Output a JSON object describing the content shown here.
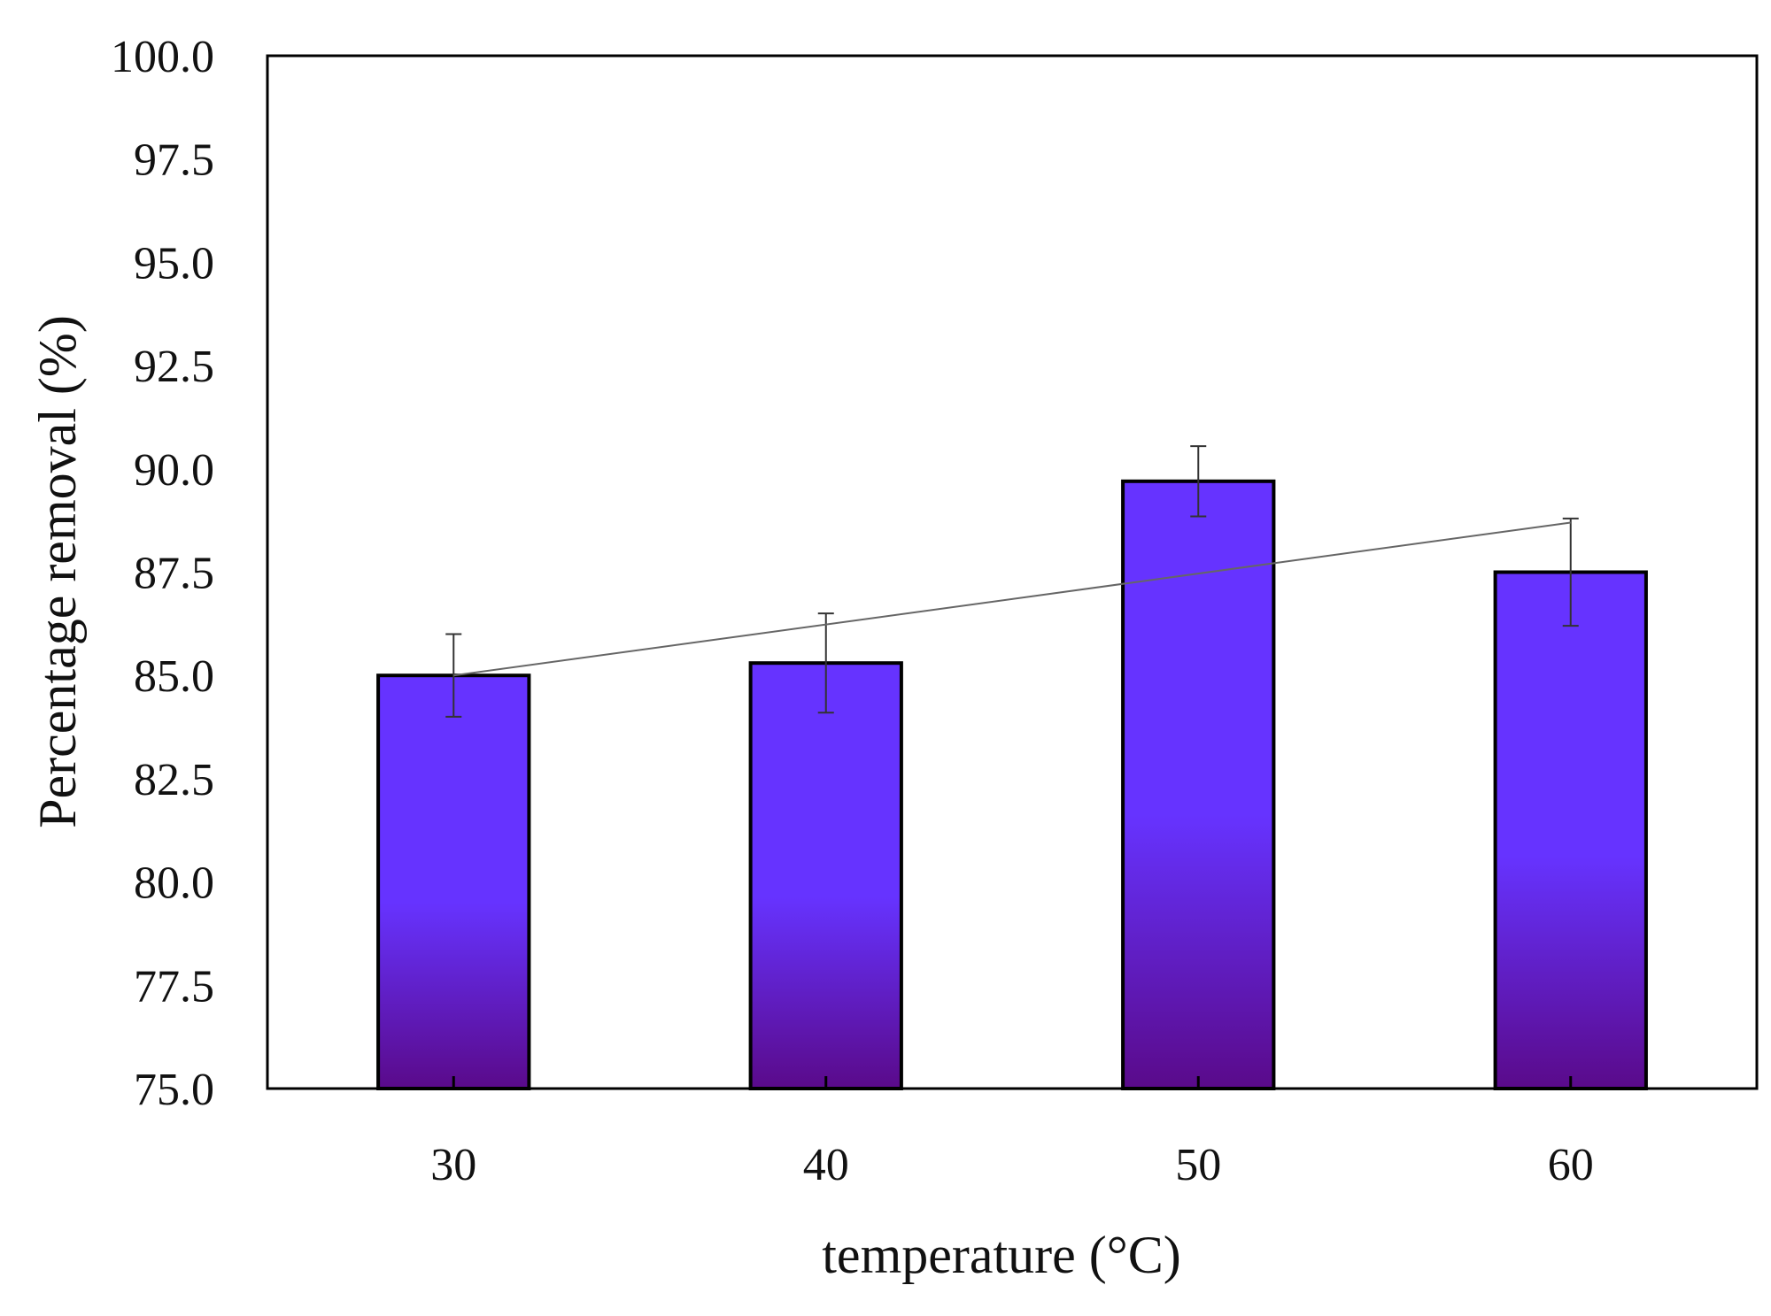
{
  "chart_data": {
    "type": "bar",
    "title": "",
    "xlabel": "temperature (°C)",
    "ylabel": "Percentage removal (%)",
    "categories": [
      "30",
      "40",
      "50",
      "60"
    ],
    "values": [
      85.0,
      85.3,
      89.7,
      87.5
    ],
    "error": [
      1.0,
      1.2,
      0.85,
      1.3
    ],
    "trendline": {
      "type": "linear",
      "start": 85.0,
      "end": 88.7
    },
    "ylim": [
      75.0,
      100.0
    ],
    "yticks": [
      "75.0",
      "77.5",
      "80.0",
      "82.5",
      "85.0",
      "87.5",
      "90.0",
      "92.5",
      "95.0",
      "97.5",
      "100.0"
    ],
    "grid": false,
    "legend": "none",
    "colors": {
      "bar_top": "#6633ff",
      "bar_mid": "#6633ff",
      "bar_bottom": "#5a0a8a",
      "bar_stroke": "#000000",
      "trendline": "#666666",
      "error_bar": "#333333",
      "axis": "#000000"
    }
  }
}
